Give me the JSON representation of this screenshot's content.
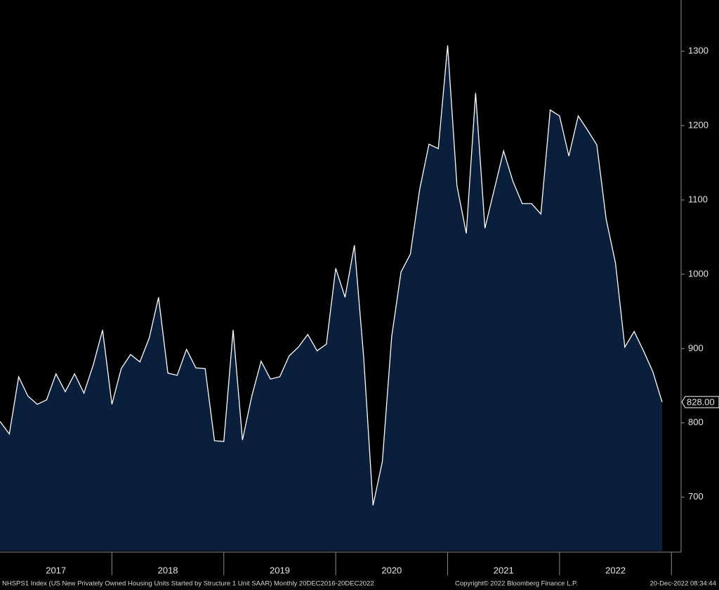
{
  "chart_data": {
    "type": "area",
    "categories": [
      null,
      null,
      null,
      null,
      null,
      null,
      "2017",
      null,
      null,
      null,
      null,
      null,
      null,
      null,
      null,
      null,
      null,
      null,
      "2018",
      null,
      null,
      null,
      null,
      null,
      null,
      null,
      null,
      null,
      null,
      null,
      "2019",
      null,
      null,
      null,
      null,
      null,
      null,
      null,
      null,
      null,
      null,
      null,
      "2020",
      null,
      null,
      null,
      null,
      null,
      null,
      null,
      null,
      null,
      null,
      null,
      "2021",
      null,
      null,
      null,
      null,
      null,
      null,
      null,
      null,
      null,
      null,
      null,
      "2022",
      null,
      null,
      null,
      null,
      null
    ],
    "series": [
      {
        "name": "NHSPS1 Index",
        "color": "#ffffff",
        "fill": "#0a1f3b",
        "values": [
          802,
          785,
          862,
          836,
          825,
          831,
          866,
          842,
          866,
          840,
          878,
          925,
          825,
          873,
          892,
          882,
          914,
          969,
          867,
          864,
          899,
          874,
          873,
          776,
          775,
          925,
          777,
          836,
          883,
          859,
          862,
          890,
          902,
          919,
          897,
          906,
          1008,
          969,
          1039,
          888,
          689,
          748,
          916,
          1003,
          1027,
          1114,
          1175,
          1169,
          1308,
          1119,
          1055,
          1244,
          1062,
          1114,
          1166,
          1125,
          1095,
          1095,
          1081,
          1221,
          1213,
          1159,
          1213,
          1194,
          1174,
          1074,
          1015,
          902,
          923,
          897,
          869,
          828
        ],
        "value_labels": [
          null,
          null,
          null,
          null,
          null,
          null,
          null,
          null,
          null,
          null,
          null,
          null,
          null,
          null,
          null,
          null,
          null,
          null,
          null,
          null,
          null,
          null,
          null,
          null,
          null,
          null,
          null,
          null,
          null,
          null,
          null,
          null,
          null,
          null,
          null,
          null,
          null,
          null,
          null,
          null,
          null,
          null,
          null,
          null,
          null,
          null,
          null,
          null,
          null,
          null,
          null,
          null,
          null,
          null,
          null,
          null,
          null,
          null,
          null,
          null,
          null,
          null,
          null,
          null,
          null,
          null,
          null,
          null,
          null,
          null,
          null,
          "828.00"
        ]
      }
    ],
    "ylim": [
      628,
      1369
    ],
    "yticks": [
      700,
      800,
      900,
      1000,
      1100,
      1200,
      1300
    ],
    "footer": "NHSPS1 Index (US New Privately Owned Housing Units Started by Structure 1 Unit SAAR)  Monthly 20DEC2016-20DEC2022",
    "copyright": "Copyright© 2022 Bloomberg Finance L.P.",
    "timestamp": "20-Dec-2022 08:34:44"
  }
}
